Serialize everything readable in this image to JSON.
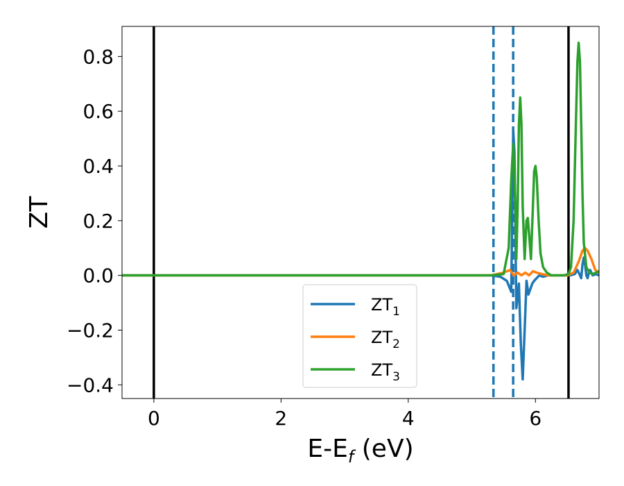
{
  "chart_data": {
    "type": "line",
    "xlabel_main": "E-E",
    "xlabel_sub": "f",
    "xlabel_unit": " (eV)",
    "ylabel": "ZT",
    "xlim": [
      -0.5,
      7.0
    ],
    "ylim": [
      -0.45,
      0.91
    ],
    "xticks": [
      0,
      2,
      4,
      6
    ],
    "xtick_labels": [
      "0",
      "2",
      "4",
      "6"
    ],
    "yticks": [
      -0.4,
      -0.2,
      0.0,
      0.2,
      0.4,
      0.6,
      0.8
    ],
    "ytick_labels": [
      "−0.4",
      "−0.2",
      "0.0",
      "0.2",
      "0.4",
      "0.6",
      "0.8"
    ],
    "grid": false,
    "legend_placement": "lower-center",
    "vlines": [
      {
        "x": 0.0,
        "style": "solid",
        "color": "#000000"
      },
      {
        "x": 6.52,
        "style": "solid",
        "color": "#000000"
      },
      {
        "x": 5.34,
        "style": "dashed",
        "color": "#1f77b4"
      },
      {
        "x": 5.65,
        "style": "dashed",
        "color": "#1f77b4"
      }
    ],
    "series": [
      {
        "name_main": "ZT",
        "name_sub": "1",
        "color": "#1f77b4",
        "x": [
          -0.5,
          5.3,
          5.45,
          5.55,
          5.62,
          5.65,
          5.67,
          5.7,
          5.74,
          5.77,
          5.8,
          5.83,
          5.86,
          5.89,
          5.92,
          5.95,
          5.98,
          6.02,
          6.06,
          6.12,
          6.2,
          6.3,
          6.4,
          6.55,
          6.62,
          6.66,
          6.7,
          6.72,
          6.74,
          6.76,
          6.78,
          6.8,
          6.82,
          6.84,
          6.86,
          6.9,
          6.95,
          7.0
        ],
        "y": [
          0.0,
          0.0,
          -0.005,
          -0.02,
          -0.06,
          0.53,
          0.45,
          -0.12,
          -0.03,
          -0.25,
          -0.38,
          -0.2,
          -0.02,
          -0.07,
          -0.05,
          -0.03,
          -0.02,
          -0.01,
          0.0,
          -0.005,
          0.0,
          0.0,
          0.0,
          0.0,
          0.005,
          0.02,
          0.0,
          -0.01,
          0.04,
          0.065,
          0.04,
          0.0,
          -0.01,
          0.01,
          0.02,
          0.0,
          0.005,
          0.0
        ]
      },
      {
        "name_main": "ZT",
        "name_sub": "2",
        "color": "#ff7f0e",
        "x": [
          -0.5,
          5.3,
          5.5,
          5.6,
          5.66,
          5.72,
          5.78,
          5.84,
          5.9,
          5.96,
          6.02,
          6.1,
          6.2,
          6.35,
          6.5,
          6.6,
          6.68,
          6.74,
          6.78,
          6.82,
          6.88,
          6.94,
          7.0
        ],
        "y": [
          0.0,
          0.0,
          0.01,
          0.02,
          0.0,
          0.01,
          0.0,
          0.01,
          0.0,
          0.015,
          0.01,
          0.005,
          0.0,
          0.0,
          0.0,
          0.01,
          0.05,
          0.09,
          0.1,
          0.09,
          0.06,
          0.02,
          0.01
        ]
      },
      {
        "name_main": "ZT",
        "name_sub": "3",
        "color": "#2ca02c",
        "x": [
          -0.5,
          5.3,
          5.5,
          5.58,
          5.62,
          5.65,
          5.68,
          5.7,
          5.72,
          5.74,
          5.76,
          5.78,
          5.8,
          5.83,
          5.86,
          5.88,
          5.9,
          5.93,
          5.96,
          5.98,
          6.0,
          6.02,
          6.05,
          6.08,
          6.12,
          6.18,
          6.25,
          6.35,
          6.45,
          6.52,
          6.56,
          6.6,
          6.63,
          6.66,
          6.68,
          6.7,
          6.72,
          6.74,
          6.76,
          6.8,
          6.85,
          6.9,
          6.95,
          7.0
        ],
        "y": [
          0.0,
          0.0,
          0.005,
          0.1,
          0.35,
          0.48,
          0.3,
          0.06,
          0.25,
          0.55,
          0.65,
          0.55,
          0.25,
          0.06,
          0.2,
          0.21,
          0.15,
          0.06,
          0.25,
          0.38,
          0.4,
          0.36,
          0.2,
          0.08,
          0.03,
          0.01,
          0.0,
          0.0,
          0.0,
          0.005,
          0.03,
          0.2,
          0.5,
          0.78,
          0.85,
          0.78,
          0.55,
          0.3,
          0.12,
          0.03,
          0.01,
          0.005,
          0.01,
          0.015
        ]
      }
    ]
  }
}
